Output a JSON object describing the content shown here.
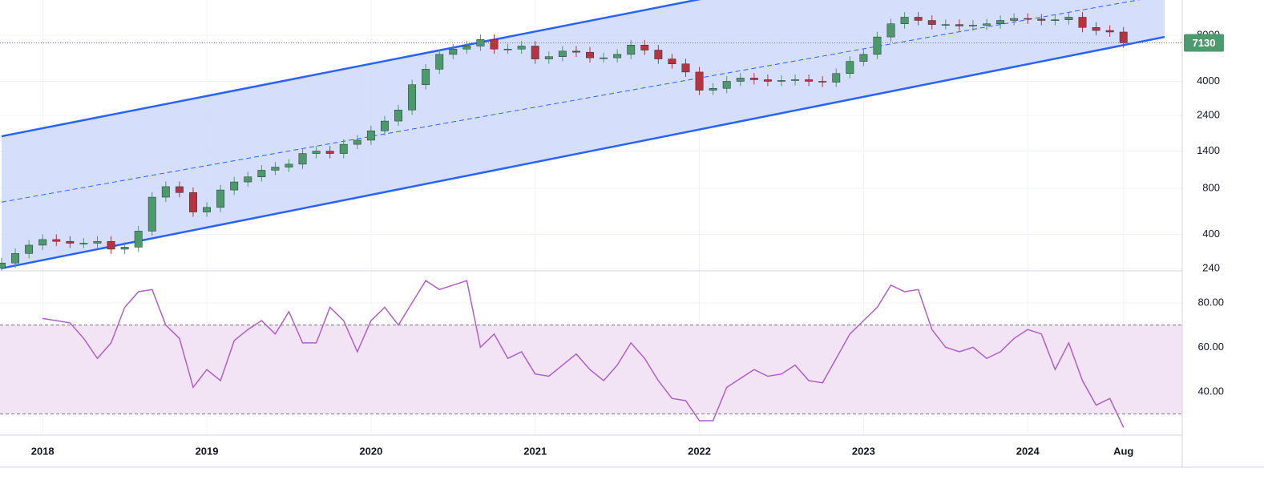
{
  "chart_data": [
    {
      "type": "candlestick",
      "x": [
        "2017-10",
        "2017-11",
        "2017-12",
        "2018-01",
        "2018-02",
        "2018-03",
        "2018-04",
        "2018-05",
        "2018-06",
        "2018-07",
        "2018-08",
        "2018-09",
        "2018-10",
        "2018-11",
        "2018-12",
        "2019-01",
        "2019-02",
        "2019-03",
        "2019-04",
        "2019-05",
        "2019-06",
        "2019-07",
        "2019-08",
        "2019-09",
        "2019-10",
        "2019-11",
        "2019-12",
        "2020-01",
        "2020-02",
        "2020-03",
        "2020-04",
        "2020-05",
        "2020-06",
        "2020-07",
        "2020-08",
        "2020-09",
        "2020-10",
        "2020-11",
        "2020-12",
        "2021-01",
        "2021-02",
        "2021-03",
        "2021-04",
        "2021-05",
        "2021-06",
        "2021-07",
        "2021-08",
        "2021-09",
        "2021-10",
        "2021-11",
        "2021-12",
        "2022-01",
        "2022-02",
        "2022-03",
        "2022-04",
        "2022-05",
        "2022-06",
        "2022-07",
        "2022-08",
        "2022-09",
        "2022-10",
        "2022-11",
        "2022-12",
        "2023-01",
        "2023-02",
        "2023-03",
        "2023-04",
        "2023-05",
        "2023-06",
        "2023-07",
        "2023-08",
        "2023-09",
        "2023-10",
        "2023-11",
        "2023-12",
        "2024-01",
        "2024-02",
        "2024-03",
        "2024-04",
        "2024-05",
        "2024-06",
        "2024-07",
        "2024-08"
      ],
      "open": [
        240,
        260,
        300,
        340,
        370,
        360,
        350,
        350,
        360,
        320,
        330,
        420,
        700,
        820,
        750,
        560,
        600,
        780,
        880,
        950,
        1050,
        1100,
        1150,
        1350,
        1400,
        1350,
        1550,
        1650,
        1900,
        2200,
        2600,
        3800,
        4800,
        6000,
        6500,
        6800,
        7500,
        6500,
        6500,
        6800,
        5600,
        5800,
        6300,
        6200,
        5700,
        5700,
        6000,
        6900,
        6400,
        5600,
        5200,
        4600,
        3500,
        3600,
        4000,
        4200,
        4100,
        4000,
        4050,
        4100,
        4000,
        3950,
        4500,
        5400,
        6000,
        7800,
        9500,
        10500,
        10000,
        9400,
        9400,
        9200,
        9300,
        9500,
        10000,
        10300,
        10200,
        10000,
        10100,
        10500,
        9000,
        8600,
        8400
      ],
      "high": [
        281,
        324,
        367,
        400,
        400,
        389,
        378,
        389,
        389,
        356,
        454,
        756,
        886,
        886,
        810,
        648,
        842,
        950,
        1026,
        1134,
        1188,
        1242,
        1458,
        1512,
        1512,
        1674,
        1782,
        2052,
        2376,
        2808,
        4104,
        5184,
        6480,
        7020,
        7344,
        8100,
        8100,
        7020,
        7344,
        7344,
        6264,
        6804,
        6804,
        6696,
        6156,
        6480,
        7452,
        7452,
        6912,
        6048,
        5616,
        4968,
        3888,
        4320,
        4536,
        4536,
        4428,
        4374,
        4428,
        4428,
        4320,
        4860,
        5832,
        6480,
        8424,
        10260,
        11340,
        11340,
        10800,
        10152,
        10152,
        10044,
        10260,
        10800,
        11124,
        11124,
        11016,
        10908,
        11340,
        11340,
        9720,
        9288,
        9072
      ],
      "low": [
        223,
        242,
        279,
        316,
        335,
        326,
        326,
        326,
        298,
        298,
        307,
        391,
        651,
        698,
        521,
        521,
        558,
        725,
        818,
        884,
        977,
        1023,
        1070,
        1256,
        1256,
        1256,
        1442,
        1535,
        1767,
        2046,
        2418,
        3534,
        4464,
        5580,
        6045,
        6324,
        6045,
        6045,
        6045,
        5208,
        5208,
        5394,
        5766,
        5301,
        5301,
        5301,
        5580,
        5952,
        5208,
        4836,
        4278,
        3255,
        3255,
        3348,
        3720,
        3813,
        3720,
        3720,
        3767,
        3720,
        3674,
        3674,
        4185,
        5022,
        5580,
        7254,
        8835,
        9300,
        8742,
        8742,
        8556,
        8556,
        8649,
        8835,
        9300,
        9486,
        9300,
        9300,
        9393,
        8370,
        7998,
        7812,
        6631
      ],
      "close": [
        260,
        300,
        340,
        370,
        360,
        350,
        350,
        360,
        320,
        330,
        420,
        700,
        820,
        750,
        560,
        600,
        780,
        880,
        950,
        1050,
        1100,
        1150,
        1350,
        1400,
        1350,
        1550,
        1650,
        1900,
        2200,
        2600,
        3800,
        4800,
        6000,
        6500,
        6800,
        7500,
        6500,
        6500,
        6800,
        5600,
        5800,
        6300,
        6200,
        5700,
        5700,
        6000,
        6900,
        6400,
        5600,
        5200,
        4600,
        3500,
        3600,
        4000,
        4200,
        4100,
        4000,
        4050,
        4100,
        4000,
        3950,
        4500,
        5400,
        6000,
        7800,
        9500,
        10500,
        10000,
        9400,
        9400,
        9200,
        9300,
        9500,
        10000,
        10300,
        10200,
        10000,
        10100,
        10500,
        9000,
        8600,
        8400,
        7130
      ],
      "up_color": "#4c9a6a",
      "down_color": "#b5343f",
      "log_scale": true,
      "xlim": [
        "2017-10",
        "2024-12"
      ],
      "ylim": [
        231,
        13600
      ],
      "yticks": [
        240,
        400,
        800,
        1400,
        2400,
        4000,
        8000
      ],
      "grid": true,
      "last_price_color": "#4e9a6f",
      "channel": {
        "start": "2017-10",
        "end": "2024-11",
        "upper": [
          1750,
          54300
        ],
        "middle": [
          650,
          14600
        ],
        "lower": [
          240,
          7800
        ],
        "color": "#2962ff",
        "fill": "#d0dcfc"
      }
    },
    {
      "type": "line",
      "x": [
        "2017-10",
        "2017-11",
        "2017-12",
        "2018-01",
        "2018-02",
        "2018-03",
        "2018-04",
        "2018-05",
        "2018-06",
        "2018-07",
        "2018-08",
        "2018-09",
        "2018-10",
        "2018-11",
        "2018-12",
        "2019-01",
        "2019-02",
        "2019-03",
        "2019-04",
        "2019-05",
        "2019-06",
        "2019-07",
        "2019-08",
        "2019-09",
        "2019-10",
        "2019-11",
        "2019-12",
        "2020-01",
        "2020-02",
        "2020-03",
        "2020-04",
        "2020-05",
        "2020-06",
        "2020-07",
        "2020-08",
        "2020-09",
        "2020-10",
        "2020-11",
        "2020-12",
        "2021-01",
        "2021-02",
        "2021-03",
        "2021-04",
        "2021-05",
        "2021-06",
        "2021-07",
        "2021-08",
        "2021-09",
        "2021-10",
        "2021-11",
        "2021-12",
        "2022-01",
        "2022-02",
        "2022-03",
        "2022-04",
        "2022-05",
        "2022-06",
        "2022-07",
        "2022-08",
        "2022-09",
        "2022-10",
        "2022-11",
        "2022-12",
        "2023-01",
        "2023-02",
        "2023-03",
        "2023-04",
        "2023-05",
        "2023-06",
        "2023-07",
        "2023-08",
        "2023-09",
        "2023-10",
        "2023-11",
        "2023-12",
        "2024-01",
        "2024-02",
        "2024-03",
        "2024-04",
        "2024-05",
        "2024-06",
        "2024-07",
        "2024-08"
      ],
      "values": [
        null,
        null,
        null,
        73,
        72,
        71,
        64,
        55,
        62,
        78,
        85,
        86,
        70,
        64,
        42,
        50,
        45,
        63,
        68,
        72,
        66,
        76,
        62,
        62,
        78,
        72,
        58,
        72,
        78,
        70,
        80,
        90,
        86,
        88,
        90,
        60,
        66,
        55,
        58,
        48,
        47,
        52,
        57,
        50,
        45,
        52,
        62,
        55,
        45,
        37,
        36,
        27,
        27,
        42,
        46,
        50,
        47,
        48,
        52,
        45,
        44,
        55,
        66,
        72,
        78,
        88,
        85,
        86,
        68,
        60,
        58,
        60,
        55,
        58,
        64,
        68,
        66,
        50,
        62,
        45,
        34,
        37,
        24
      ],
      "color": "#b05fc8",
      "xlim": [
        "2017-10",
        "2024-12"
      ],
      "ylim": [
        20.5,
        94.4
      ],
      "yticks": [
        {
          "value": 40,
          "label": "40.00"
        },
        {
          "value": 60,
          "label": "60.00"
        },
        {
          "value": 80,
          "label": "80.00"
        }
      ],
      "xticks": [
        {
          "value": "2018-01",
          "label": "2018"
        },
        {
          "value": "2019-01",
          "label": "2019"
        },
        {
          "value": "2020-01",
          "label": "2020"
        },
        {
          "value": "2021-01",
          "label": "2021"
        },
        {
          "value": "2022-01",
          "label": "2022"
        },
        {
          "value": "2023-01",
          "label": "2023"
        },
        {
          "value": "2024-01",
          "label": "2024"
        },
        {
          "value": "2024-08",
          "label": "Aug"
        }
      ],
      "bands": [
        70,
        30
      ],
      "band_fill": "#f2e4f5",
      "grid": true
    }
  ]
}
